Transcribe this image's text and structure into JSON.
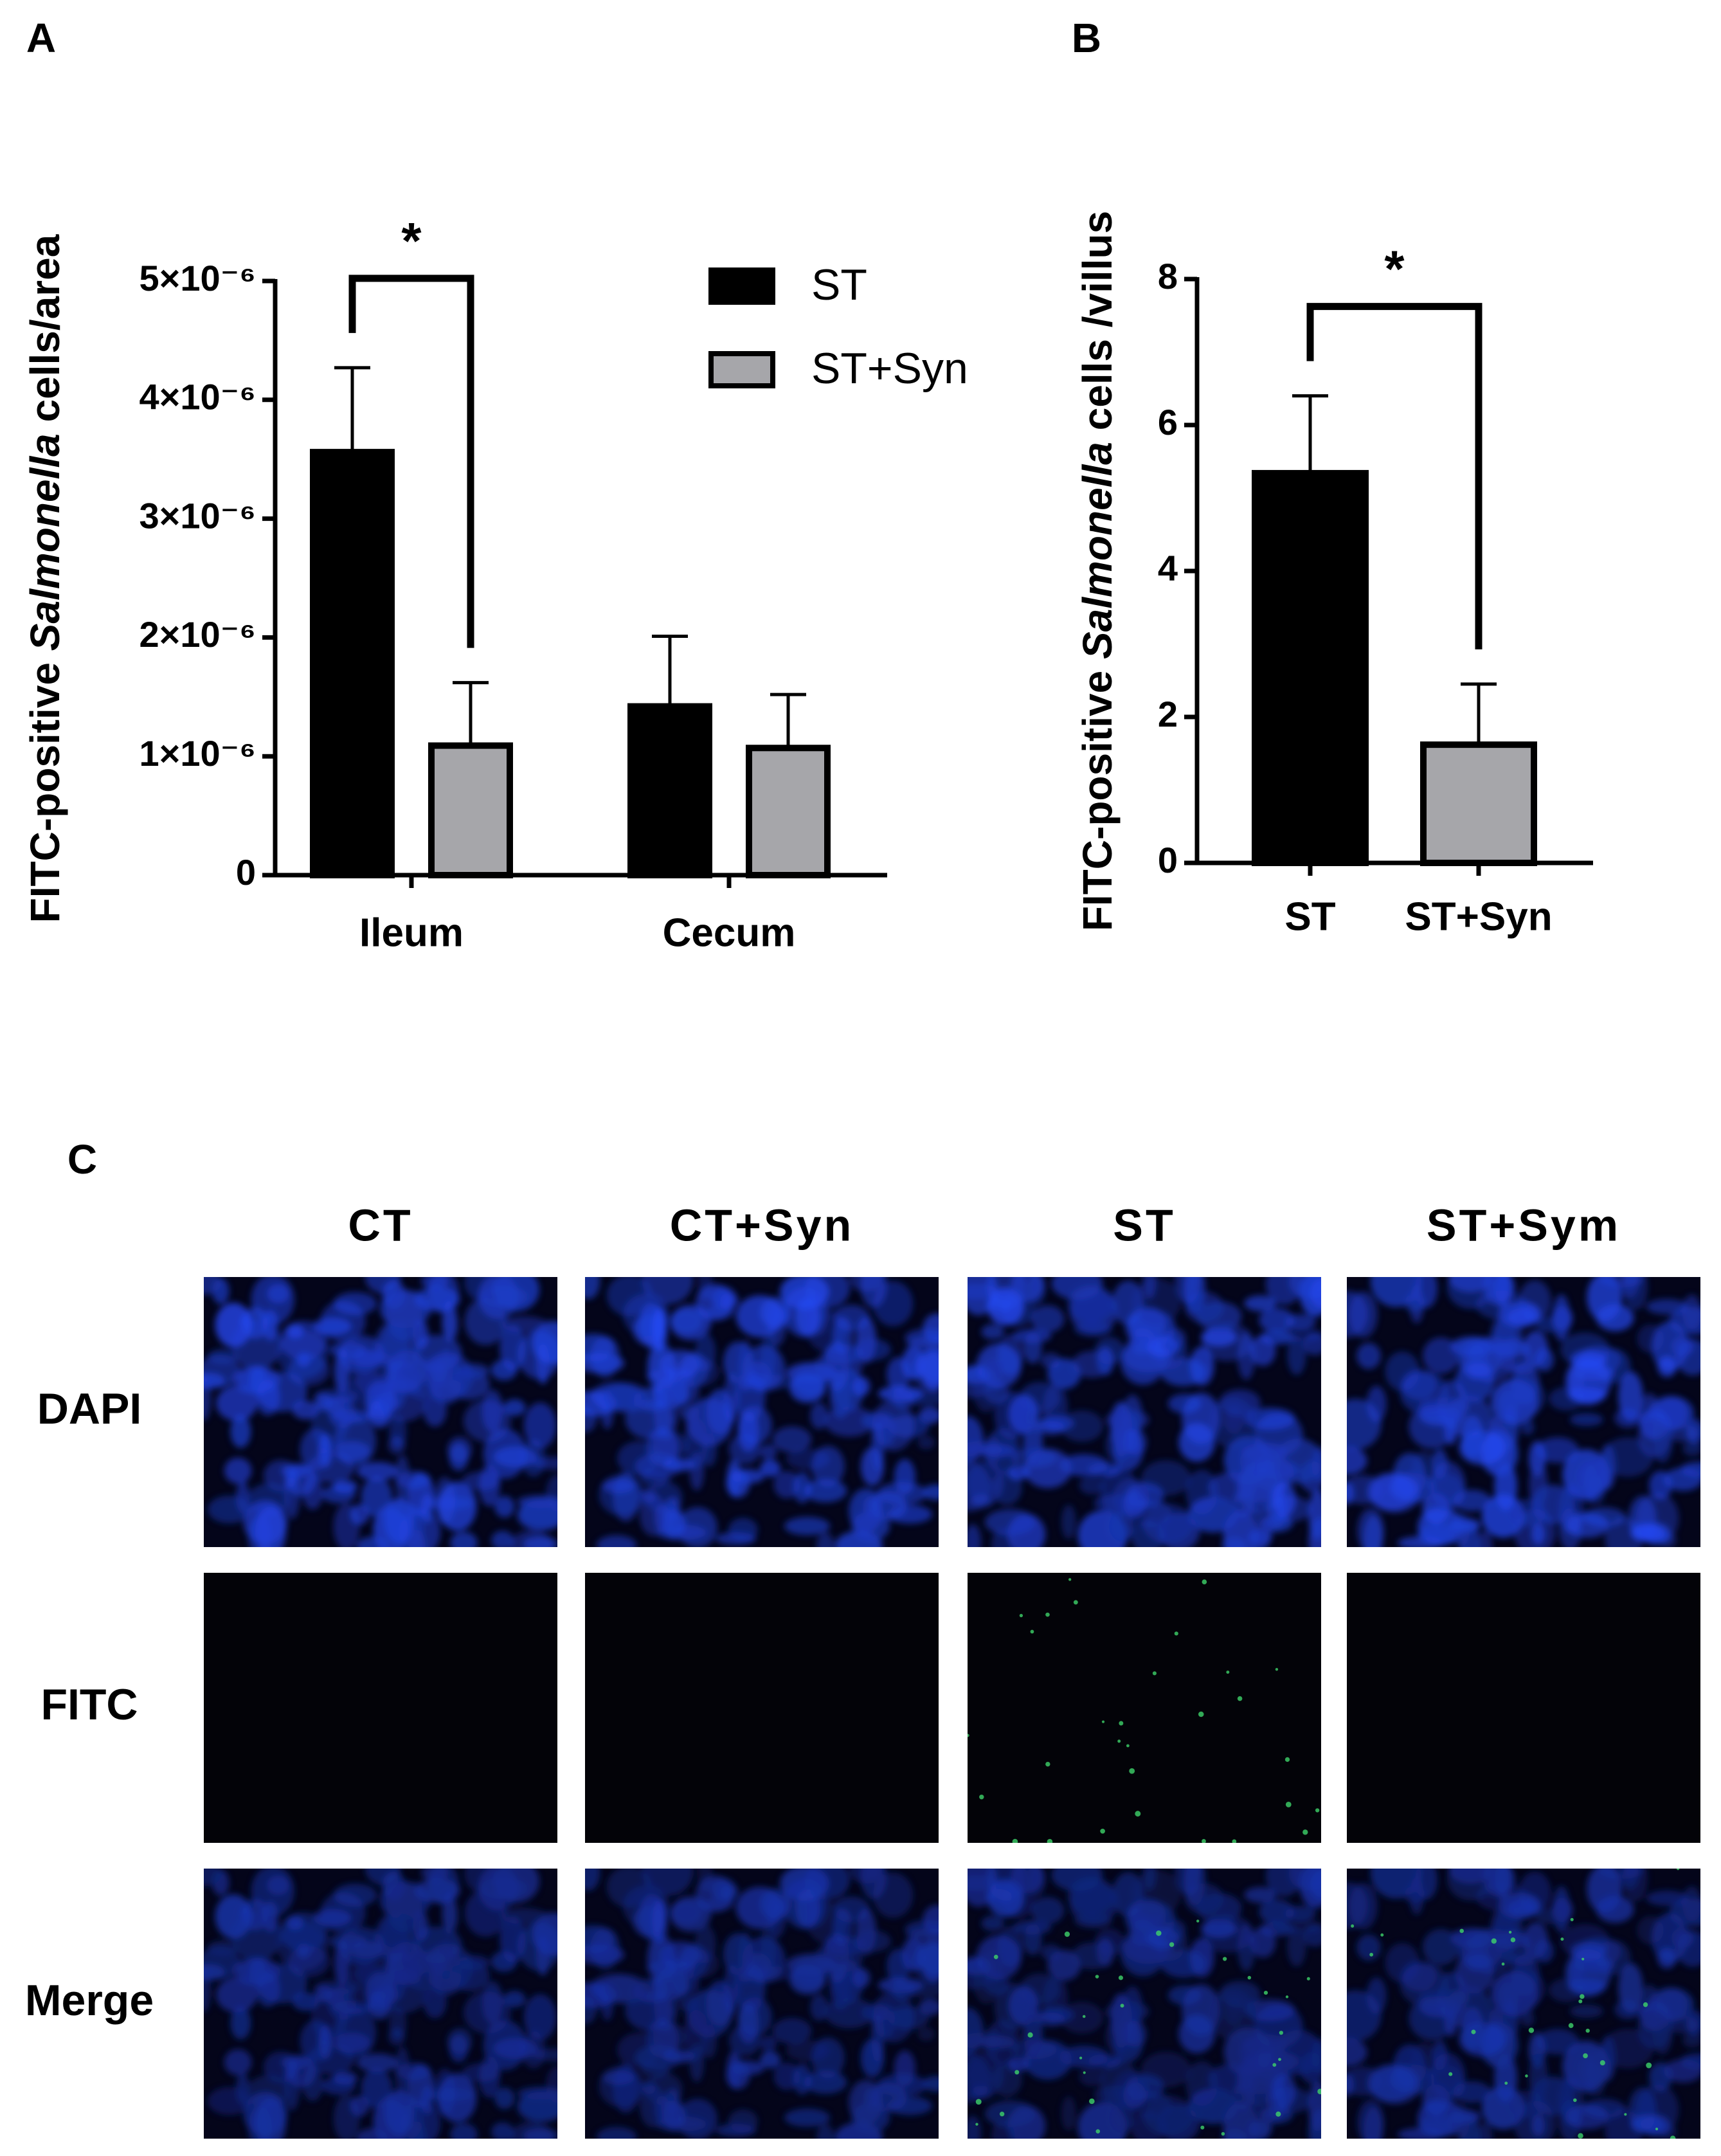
{
  "chart_data": [
    {
      "type": "bar",
      "panel_label": "A",
      "ylabel": "FITC-positive Salmonella cells/area",
      "ylabel_italic": "Salmonella",
      "categories": [
        "Ileum",
        "Cecum"
      ],
      "series": [
        {
          "name": "ST",
          "color": "#000000",
          "values": [
            3.56e-06,
            1.42e-06
          ],
          "errors": [
            7.1e-07,
            5.9e-07
          ]
        },
        {
          "name": "ST+Syn",
          "color": "#a6a6aa",
          "values": [
            1.09e-06,
            1.07e-06
          ],
          "errors": [
            5.3e-07,
            4.5e-07
          ]
        }
      ],
      "ylim": [
        0,
        5e-06
      ],
      "yticks": [
        0,
        {
          "value": 1e-06,
          "label": "1×10⁻⁶"
        },
        {
          "value": 2e-06,
          "label": "2×10⁻⁶"
        },
        {
          "value": 3e-06,
          "label": "3×10⁻⁶"
        },
        {
          "value": 4e-06,
          "label": "4×10⁻⁶"
        },
        {
          "value": 5e-06,
          "label": "5×10⁻⁶"
        }
      ],
      "significance": "*",
      "legend": "upper right"
    },
    {
      "type": "bar",
      "panel_label": "B",
      "ylabel": "FITC-positive Salmonella cells /villus",
      "ylabel_italic": "Salmonella",
      "categories": [
        "ST",
        "ST+Syn"
      ],
      "values": [
        5.34,
        1.62
      ],
      "errors": [
        1.06,
        0.83
      ],
      "colors": [
        "#000000",
        "#a6a6aa"
      ],
      "ylim": [
        0,
        8
      ],
      "yticks": [
        0,
        2,
        4,
        6,
        8
      ],
      "significance": "*"
    }
  ],
  "panel_c": {
    "label": "C",
    "columns": [
      "CT",
      "CT+Syn",
      "ST",
      "ST+Sym"
    ],
    "rows": [
      "DAPI",
      "FITC",
      "Merge"
    ]
  }
}
